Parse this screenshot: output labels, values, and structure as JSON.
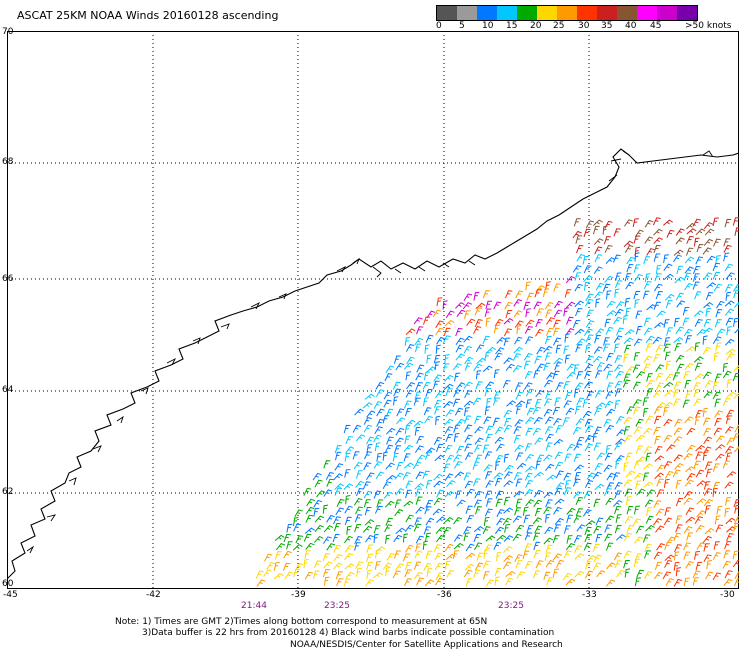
{
  "title": "ASCAT 25KM NOAA Winds 20160128 ascending",
  "legend": {
    "colors": [
      "#555555",
      "#9a9a9a",
      "#0078ff",
      "#00c8ff",
      "#00aa00",
      "#ffd700",
      "#ff9900",
      "#ff3300",
      "#cc2020",
      "#885533",
      "#ff00ff",
      "#cc00cc",
      "#7700aa"
    ],
    "labels": [
      "0",
      "5",
      "10",
      "15",
      "20",
      "25",
      "30",
      "35",
      "40",
      "45",
      ">50 knots"
    ]
  },
  "lat_labels": [
    "70",
    "68",
    "66",
    "64",
    "62",
    "60"
  ],
  "lon_labels": [
    "-45",
    "-42",
    "-39",
    "-36",
    "-33",
    "-30"
  ],
  "time_labels": [
    "21:44",
    "23:25",
    "23:25"
  ],
  "note": [
    "Note: 1) Times are GMT 2)Times along bottom correspond to measurement at 65N",
    "3)Data buffer is 22 hrs from 20160128 4) Black wind barbs indicate possible contamination"
  ],
  "credit": "NOAA/NESDIS/Center for Satellite Applications and Research"
}
